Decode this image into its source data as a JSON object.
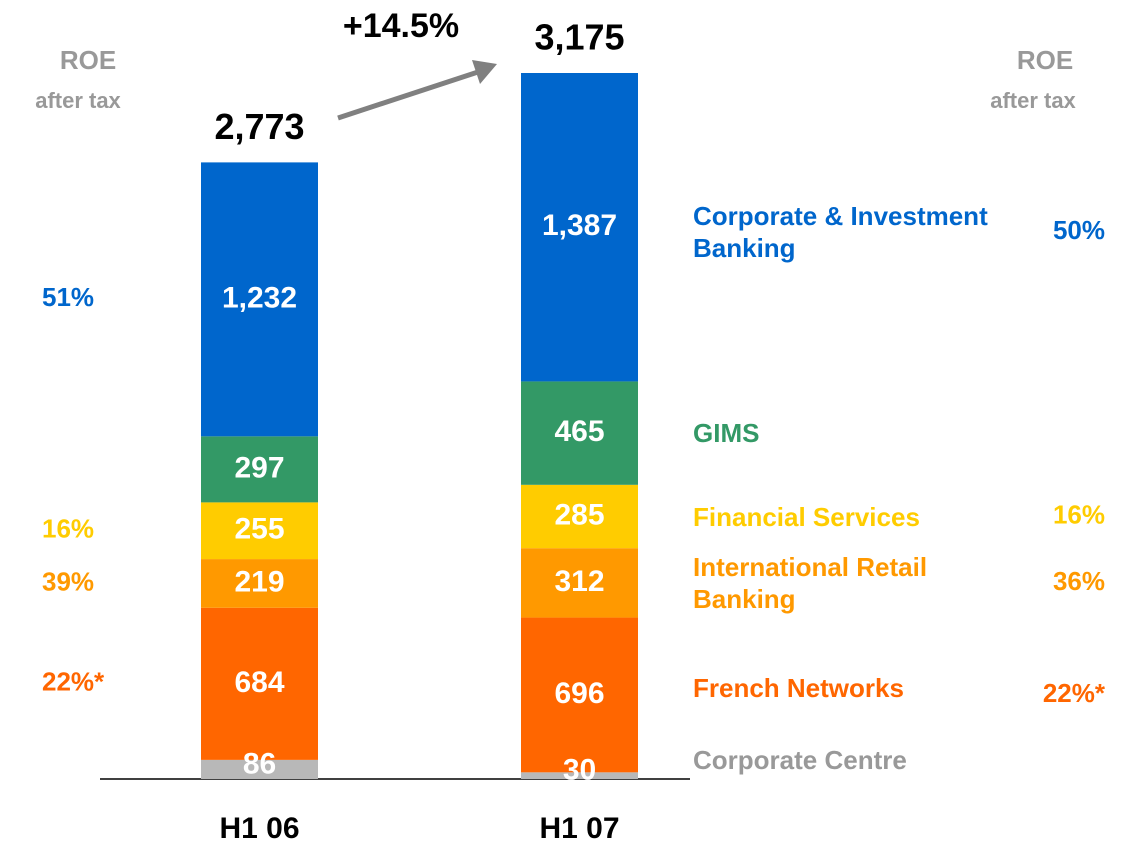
{
  "chart_data": {
    "type": "stacked-bar",
    "categories": [
      "H1 06",
      "H1 07"
    ],
    "roe_header": "ROE",
    "roe_subheader": "after tax",
    "growth_label": "+14.5%",
    "totals": {
      "values": [
        2773,
        3175
      ],
      "value_labels": [
        "2,773",
        "3,175"
      ]
    },
    "series": [
      {
        "name": "Corporate Centre",
        "color": "#b8b8b8",
        "label_color": "#999999",
        "values": [
          86,
          30
        ],
        "value_labels": [
          "86",
          "30"
        ],
        "roe_labels": [
          null,
          null
        ]
      },
      {
        "name": "French Networks",
        "color": "#ff6600",
        "label_color": "#ff6600",
        "values": [
          684,
          696
        ],
        "value_labels": [
          "684",
          "696"
        ],
        "roe_labels": [
          "22%*",
          "22%*"
        ]
      },
      {
        "name": "International Retail Banking",
        "color": "#ff9900",
        "label_color": "#ff9900",
        "values": [
          219,
          312
        ],
        "value_labels": [
          "219",
          "312"
        ],
        "roe_labels": [
          "39%",
          "36%"
        ]
      },
      {
        "name": "Financial Services",
        "color": "#ffcc00",
        "label_color": "#ffcc00",
        "values": [
          255,
          285
        ],
        "value_labels": [
          "255",
          "285"
        ],
        "roe_labels": [
          "16%",
          "16%"
        ]
      },
      {
        "name": "GIMS",
        "color": "#339966",
        "label_color": "#339966",
        "values": [
          297,
          465
        ],
        "value_labels": [
          "297",
          "465"
        ],
        "roe_labels": [
          null,
          null
        ]
      },
      {
        "name": "Corporate & Investment Banking",
        "color": "#0066cc",
        "label_color": "#0066cc",
        "values": [
          1232,
          1387
        ],
        "value_labels": [
          "1,232",
          "1,387"
        ],
        "roe_labels": [
          "51%",
          "50%"
        ]
      }
    ]
  }
}
